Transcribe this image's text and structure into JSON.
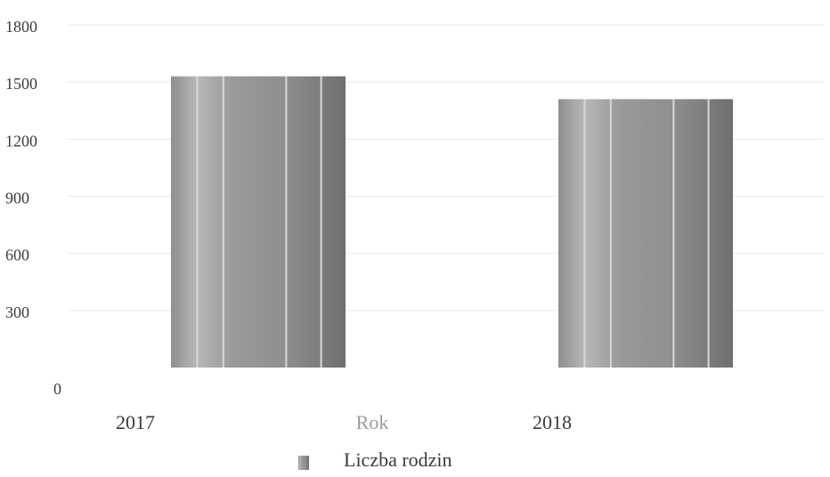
{
  "chart_data": {
    "type": "bar",
    "categories": [
      "2017",
      "2018"
    ],
    "series": [
      {
        "name": "Liczba rodzin",
        "values": [
          1530,
          1410
        ]
      }
    ],
    "title": "",
    "xlabel": "Rok",
    "ylabel": "",
    "ylim": [
      0,
      1800
    ],
    "yticks": [
      "0",
      "300",
      "600",
      "900",
      "1200",
      "1500",
      "1800"
    ],
    "grid": true,
    "legend": "bottom-center",
    "colors": {
      "bar_light": "#b7b7b7",
      "bar_mid": "#8f8f8f",
      "bar_dark": "#6f6f6f",
      "grid": "#e9e9e9",
      "text": "#3a3a3a",
      "axis_label": "#9a9a9a"
    }
  }
}
